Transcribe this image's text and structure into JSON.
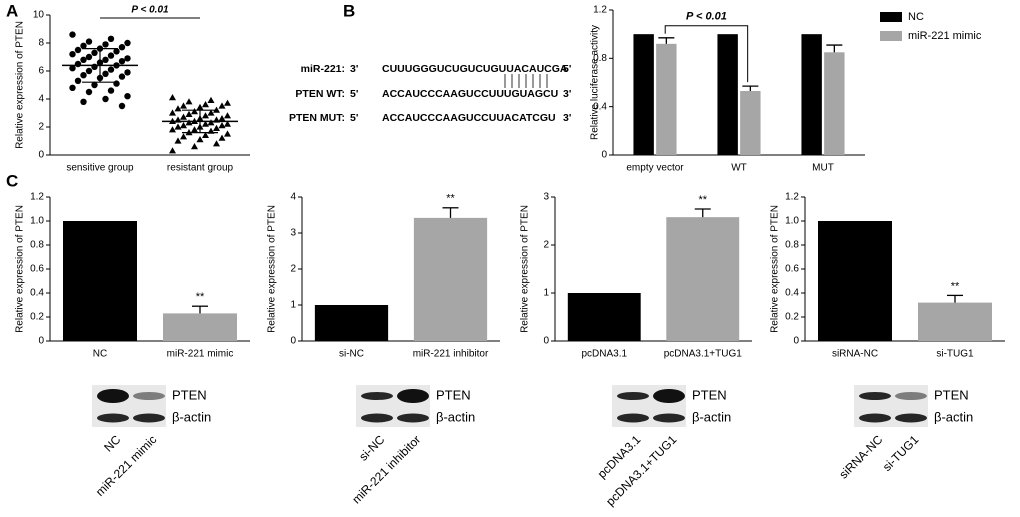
{
  "panel_labels": [
    "A",
    "B",
    "C"
  ],
  "sequences": {
    "rows": [
      {
        "label": "miR-221:",
        "left_end": "3'",
        "seq": "CUUUGGGUCUGUCUGUUACAUCGA",
        "right_end": "5'"
      },
      {
        "label": "PTEN WT:",
        "left_end": "5'",
        "seq": "ACCAUCCCAAGUCCUUUGUAGCU",
        "right_end": "3'"
      },
      {
        "label": "PTEN MUT:",
        "left_end": "5'",
        "seq": "ACCAUCCCAAGUCCUUACATCGU",
        "right_end": "3'"
      }
    ]
  },
  "blots": [
    {
      "proteins": [
        "PTEN",
        "β-actin"
      ],
      "lanes": [
        "NC",
        "miR-221 mimic"
      ]
    },
    {
      "proteins": [
        "PTEN",
        "β-actin"
      ],
      "lanes": [
        "si-NC",
        "miR-221 inhibitor"
      ]
    },
    {
      "proteins": [
        "PTEN",
        "β-actin"
      ],
      "lanes": [
        "pcDNA3.1",
        "pcDNA3.1+TUG1"
      ]
    },
    {
      "proteins": [
        "PTEN",
        "β-actin"
      ],
      "lanes": [
        "siRNA-NC",
        "si-TUG1"
      ]
    }
  ],
  "chart_data": [
    {
      "type": "strip",
      "y_label": "Relative expression of PTEN",
      "annotation": "P < 0.01",
      "categories": [
        "sensitive group",
        "resistant group"
      ],
      "groups": [
        {
          "marker": "circle",
          "mean": 6.4,
          "sd": 1.2,
          "values": [
            8.6,
            8.3,
            8.1,
            8.0,
            7.9,
            7.8,
            7.7,
            7.6,
            7.5,
            7.4,
            7.3,
            7.2,
            7.1,
            7.0,
            6.9,
            6.8,
            6.8,
            6.7,
            6.6,
            6.5,
            6.4,
            6.3,
            6.2,
            6.1,
            6.0,
            5.9,
            5.8,
            5.7,
            5.6,
            5.5,
            5.3,
            5.1,
            5.0,
            4.8,
            4.6,
            4.5,
            4.2,
            4.0,
            3.8,
            3.5
          ]
        },
        {
          "marker": "triangle",
          "mean": 2.4,
          "sd": 0.8,
          "values": [
            4.1,
            3.9,
            3.8,
            3.7,
            3.6,
            3.5,
            3.5,
            3.4,
            3.3,
            3.2,
            3.1,
            3.0,
            3.0,
            2.9,
            2.8,
            2.8,
            2.7,
            2.6,
            2.6,
            2.5,
            2.5,
            2.4,
            2.4,
            2.3,
            2.3,
            2.2,
            2.2,
            2.1,
            2.1,
            2.0,
            2.0,
            1.9,
            1.8,
            1.8,
            1.7,
            1.6,
            1.5,
            1.4,
            1.3,
            1.2,
            1.1,
            1.0,
            0.8,
            0.6,
            0.3
          ]
        }
      ],
      "color": "#000000",
      "ylim": [
        0,
        10
      ],
      "yticks": [
        0,
        2,
        4,
        6,
        8,
        10
      ]
    },
    {
      "type": "bar",
      "y_label": "Relative luciferase activity",
      "annotation": "P < 0.01",
      "categories": [
        "empty vector",
        "WT",
        "MUT"
      ],
      "series": [
        {
          "name": "NC",
          "color": "#000000",
          "values": [
            1,
            1,
            1
          ],
          "errors": [
            0,
            0,
            0
          ]
        },
        {
          "name": "miR-221 mimic",
          "color": "#a6a6a6",
          "values": [
            0.92,
            0.53,
            0.85
          ],
          "errors": [
            0.05,
            0.04,
            0.06
          ]
        }
      ],
      "ylim": [
        0,
        1.2
      ],
      "yticks": [
        0,
        0.4,
        0.8,
        1.2
      ]
    },
    {
      "type": "bar",
      "y_label": "Relative expression of PTEN",
      "annotation": "**",
      "categories": [
        "NC",
        "miR-221 mimic"
      ],
      "values": [
        1,
        0.23
      ],
      "errors": [
        0,
        0.06
      ],
      "colors": [
        "#000000",
        "#a6a6a6"
      ],
      "ylim": [
        0,
        1.2
      ],
      "yticks": [
        0,
        0.2,
        0.4,
        0.6,
        0.8,
        {
          "value": 1,
          "label": "1.0"
        },
        1.2
      ]
    },
    {
      "type": "bar",
      "y_label": "Relative expression of PTEN",
      "annotation": "**",
      "categories": [
        "si-NC",
        "miR-221 inhibitor"
      ],
      "values": [
        1,
        3.42
      ],
      "errors": [
        0,
        0.28
      ],
      "colors": [
        "#000000",
        "#a6a6a6"
      ],
      "ylim": [
        0,
        4
      ],
      "yticks": [
        0,
        1,
        2,
        3,
        4
      ]
    },
    {
      "type": "bar",
      "y_label": "Relative expression of PTEN",
      "annotation": "**",
      "categories": [
        "pcDNA3.1",
        "pcDNA3.1+TUG1"
      ],
      "values": [
        1,
        2.58
      ],
      "errors": [
        0,
        0.17
      ],
      "colors": [
        "#000000",
        "#a6a6a6"
      ],
      "ylim": [
        0,
        3
      ],
      "yticks": [
        0,
        1,
        2,
        3
      ]
    },
    {
      "type": "bar",
      "y_label": "Relative expression of PTEN",
      "annotation": "**",
      "categories": [
        "siRNA-NC",
        "si-TUG1"
      ],
      "values": [
        1,
        0.32
      ],
      "errors": [
        0,
        0.06
      ],
      "colors": [
        "#000000",
        "#a6a6a6"
      ],
      "ylim": [
        0,
        1.2
      ],
      "yticks": [
        0,
        0.2,
        0.4,
        0.6,
        0.8,
        {
          "value": 1,
          "label": "1.0"
        },
        1.2
      ]
    }
  ]
}
